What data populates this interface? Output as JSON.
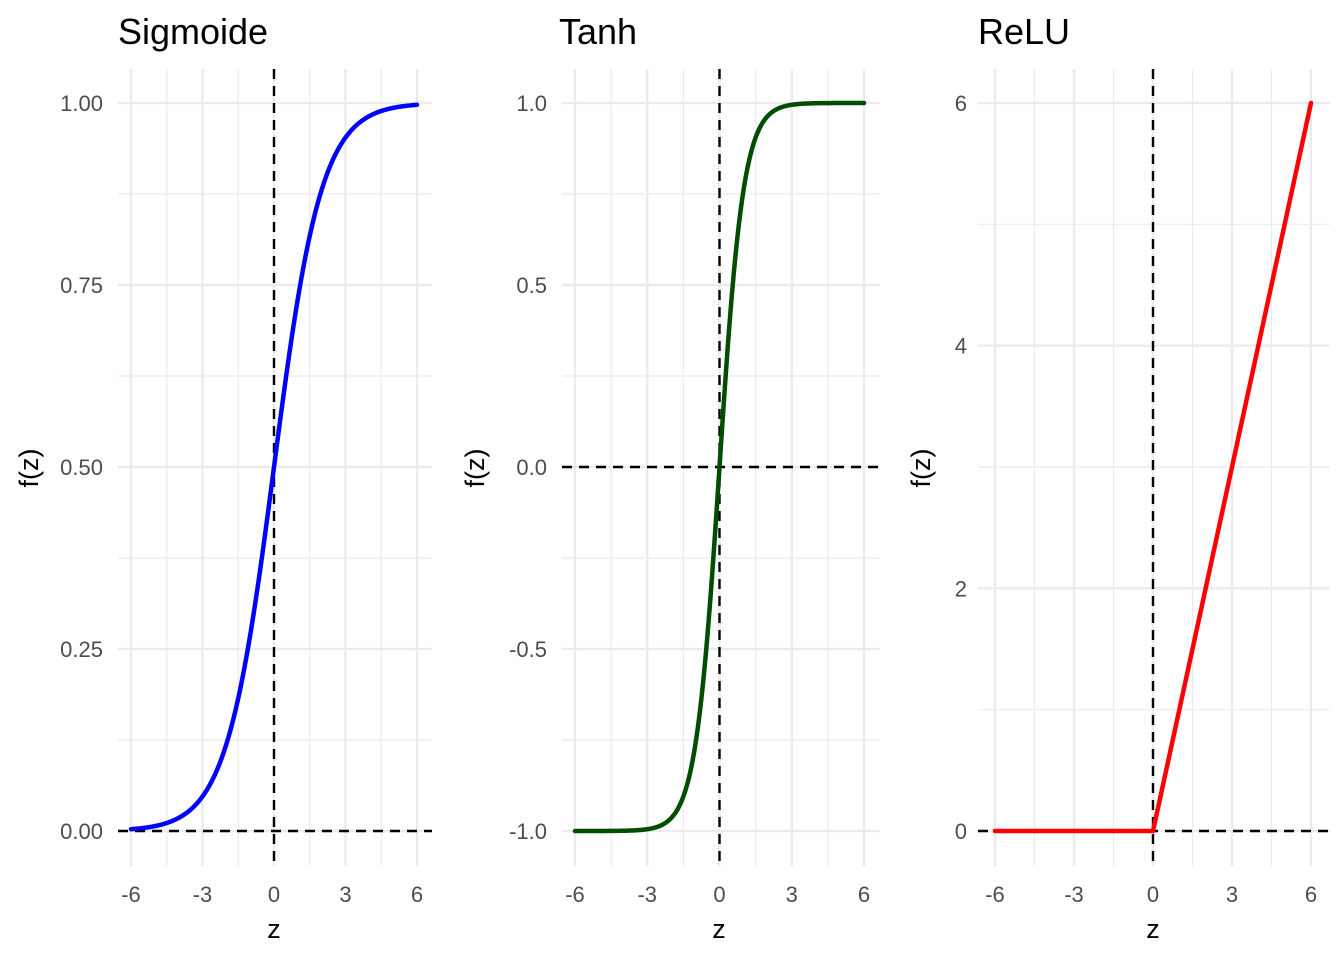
{
  "chart_data": [
    {
      "type": "line",
      "title": "Sigmoide",
      "function": "sigmoid",
      "xlabel": "z",
      "ylabel": "f(z)",
      "xlim": [
        -6,
        6
      ],
      "ylim": [
        0,
        1
      ],
      "xticks": [
        -6,
        -3,
        0,
        3,
        6
      ],
      "yticks": [
        0,
        0.25,
        0.5,
        0.75,
        1.0
      ],
      "ytick_labels": [
        "0.00",
        "0.25",
        "0.50",
        "0.75",
        "1.00"
      ],
      "reference_lines": {
        "vertical_x": 0,
        "horizontal_y": 0
      },
      "color": "#0000ff",
      "x": [
        -6,
        -5,
        -4,
        -3,
        -2,
        -1,
        0,
        1,
        2,
        3,
        4,
        5,
        6
      ],
      "y": [
        0.0025,
        0.0067,
        0.018,
        0.0474,
        0.1192,
        0.2689,
        0.5,
        0.7311,
        0.8808,
        0.9526,
        0.982,
        0.9933,
        0.9975
      ]
    },
    {
      "type": "line",
      "title": "Tanh",
      "function": "tanh",
      "xlabel": "z",
      "ylabel": "f(z)",
      "xlim": [
        -6,
        6
      ],
      "ylim": [
        -1,
        1
      ],
      "xticks": [
        -6,
        -3,
        0,
        3,
        6
      ],
      "yticks": [
        -1.0,
        -0.5,
        0.0,
        0.5,
        1.0
      ],
      "ytick_labels": [
        "-1.0",
        "-0.5",
        "0.0",
        "0.5",
        "1.0"
      ],
      "reference_lines": {
        "vertical_x": 0,
        "horizontal_y": 0
      },
      "color": "#004d00",
      "x": [
        -6,
        -5,
        -4,
        -3,
        -2,
        -1,
        0,
        1,
        2,
        3,
        4,
        5,
        6
      ],
      "y": [
        -1.0,
        -0.9999,
        -0.9993,
        -0.9951,
        -0.964,
        -0.7616,
        0,
        0.7616,
        0.964,
        0.9951,
        0.9993,
        0.9999,
        1.0
      ]
    },
    {
      "type": "line",
      "title": "ReLU",
      "function": "relu",
      "xlabel": "z",
      "ylabel": "f(z)",
      "xlim": [
        -6,
        6
      ],
      "ylim": [
        0,
        6
      ],
      "xticks": [
        -6,
        -3,
        0,
        3,
        6
      ],
      "yticks": [
        0,
        2,
        4,
        6
      ],
      "ytick_labels": [
        "0",
        "2",
        "4",
        "6"
      ],
      "reference_lines": {
        "vertical_x": 0,
        "horizontal_y": 0
      },
      "color": "#ff0000",
      "x": [
        -6,
        0,
        6
      ],
      "y": [
        0,
        0,
        6
      ]
    }
  ]
}
